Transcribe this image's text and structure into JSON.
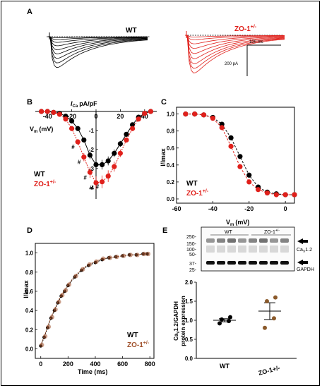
{
  "panels": {
    "A": {
      "label": "A",
      "wt_label": "WT",
      "zo_label": "ZO-1",
      "zo_sup": "+/-",
      "scale_time": "100 ms",
      "scale_current": "200 pA",
      "colors": {
        "wt": "#000000",
        "zo": "#e0201b"
      }
    },
    "B": {
      "label": "B",
      "wt_label": "WT",
      "zo_label": "ZO-1",
      "zo_sup": "+/-"
    },
    "C": {
      "label": "C",
      "wt_label": "WT",
      "zo_label": "ZO-1",
      "zo_sup": "+/-"
    },
    "D": {
      "label": "D",
      "wt_label": "WT",
      "zo_label": "ZO-1",
      "zo_sup": "+/-"
    },
    "E": {
      "label": "E",
      "blot_wt": "WT",
      "blot_zo": "ZO-1",
      "blot_zo_sup": "+/-",
      "cav_label": "Ca",
      "cav_sub": "V",
      "cav_rest": "1.2",
      "gapdh_label": "GAPDH",
      "marker_labels": [
        "250-",
        "150-",
        "100-",
        "50-",
        "37-",
        "25-"
      ]
    }
  },
  "chart_data": [
    {
      "panel": "B",
      "type": "scatter",
      "ylabel": "I",
      "ylabel_sub": "Ca",
      "ylabel_rest": "pA/pF",
      "xlabel": "V",
      "xlabel_sub": "m",
      "xlabel_rest": "(mV)",
      "x_ticks": [
        "-40",
        "-20",
        "0",
        "20",
        "40"
      ],
      "y_ticks": [
        "0",
        "-1",
        "-2",
        "-3",
        "-4"
      ],
      "xlim": [
        -50,
        50
      ],
      "ylim": [
        -4.6,
        0
      ],
      "sig_marker": "#",
      "sig_x": [
        -15,
        -10,
        -5,
        0,
        5
      ],
      "series": [
        {
          "name": "WT",
          "color": "#000000",
          "x": [
            -45,
            -40,
            -35,
            -30,
            -25,
            -20,
            -15,
            -10,
            -5,
            0,
            5,
            10,
            15,
            20,
            25,
            30,
            35,
            40,
            45
          ],
          "y": [
            0,
            0,
            -0.05,
            -0.1,
            -0.25,
            -0.5,
            -0.9,
            -1.5,
            -2.3,
            -2.8,
            -2.8,
            -2.6,
            -2.2,
            -1.7,
            -1.2,
            -0.7,
            -0.3,
            -0.1,
            0
          ]
        },
        {
          "name": "ZO-1+/-",
          "color": "#e0201b",
          "x": [
            -45,
            -40,
            -35,
            -30,
            -25,
            -20,
            -15,
            -10,
            -5,
            0,
            5,
            10,
            15,
            20,
            25,
            30,
            35,
            40,
            45
          ],
          "y": [
            0,
            0,
            -0.05,
            -0.15,
            -0.4,
            -0.9,
            -1.6,
            -2.4,
            -3.2,
            -3.75,
            -3.7,
            -3.4,
            -2.9,
            -2.2,
            -1.5,
            -0.9,
            -0.4,
            -0.1,
            0
          ]
        }
      ]
    },
    {
      "panel": "C",
      "type": "scatter",
      "ylabel": "I/Imax",
      "xlabel": "V",
      "xlabel_sub": "m",
      "xlabel_rest": "(mV)",
      "x_ticks": [
        "-60",
        "-40",
        "-20",
        "0"
      ],
      "y_ticks": [
        "0.0",
        "0.2",
        "0.4",
        "0.6",
        "0.8",
        "1.0"
      ],
      "xlim": [
        -60,
        5
      ],
      "ylim": [
        -0.05,
        1.08
      ],
      "series": [
        {
          "name": "WT",
          "color": "#000000",
          "x": [
            -55,
            -50,
            -45,
            -40,
            -35,
            -30,
            -25,
            -20,
            -15,
            -10,
            -5,
            0,
            5
          ],
          "y": [
            1.0,
            1.0,
            0.99,
            0.96,
            0.88,
            0.72,
            0.5,
            0.28,
            0.14,
            0.08,
            0.06,
            0.05,
            0.05
          ]
        },
        {
          "name": "ZO-1+/-",
          "color": "#e0201b",
          "x": [
            -55,
            -50,
            -45,
            -40,
            -35,
            -30,
            -25,
            -20,
            -15,
            -10,
            -5,
            0,
            5
          ],
          "y": [
            1.0,
            1.0,
            0.99,
            0.95,
            0.84,
            0.62,
            0.38,
            0.2,
            0.11,
            0.07,
            0.05,
            0.05,
            0.05
          ]
        }
      ]
    },
    {
      "panel": "D",
      "type": "scatter",
      "ylabel": "I/Imax",
      "xlabel": "Time (ms)",
      "x_ticks": [
        "0",
        "200",
        "400",
        "600",
        "800"
      ],
      "y_ticks": [
        "0.0",
        "0.2",
        "0.4",
        "0.6",
        "0.8",
        "1.0"
      ],
      "xlim": [
        -40,
        830
      ],
      "ylim": [
        -0.1,
        1.1
      ],
      "series": [
        {
          "name": "WT",
          "color": "#000000",
          "x": [
            0,
            25,
            50,
            75,
            100,
            125,
            150,
            175,
            200,
            250,
            300,
            350,
            400,
            450,
            500,
            550,
            600,
            650,
            700,
            750,
            780
          ],
          "y": [
            0.03,
            0.12,
            0.22,
            0.32,
            0.4,
            0.48,
            0.55,
            0.6,
            0.66,
            0.75,
            0.82,
            0.87,
            0.9,
            0.93,
            0.95,
            0.96,
            0.97,
            0.98,
            0.98,
            0.99,
            0.99
          ]
        },
        {
          "name": "ZO-1+/-",
          "color": "#a0522d",
          "x": [
            0,
            25,
            50,
            75,
            100,
            125,
            150,
            175,
            200,
            250,
            300,
            350,
            400,
            450,
            500,
            550,
            600,
            650,
            700,
            750,
            780
          ],
          "y": [
            0.04,
            0.13,
            0.23,
            0.33,
            0.41,
            0.49,
            0.56,
            0.61,
            0.67,
            0.76,
            0.83,
            0.88,
            0.91,
            0.94,
            0.95,
            0.96,
            0.97,
            0.98,
            0.98,
            0.99,
            0.99
          ]
        }
      ]
    },
    {
      "panel": "E",
      "type": "scatter",
      "ylabel_line1": "Ca",
      "ylabel_line1_sub": "V",
      "ylabel_line1_rest": "1.2/GAPDH",
      "ylabel_line2": "protein expression",
      "categories": [
        "WT",
        "ZO-1+/-"
      ],
      "y_ticks": [
        "0.0",
        "0.5",
        "1.0",
        "1.5",
        "2.0"
      ],
      "ylim": [
        0,
        2.0
      ],
      "series": [
        {
          "name": "WT",
          "color": "#000000",
          "points": [
            0.92,
            0.98,
            1.02,
            1.08
          ],
          "mean": 1.0,
          "sem": 0.04
        },
        {
          "name": "ZO-1+/-",
          "color": "#8b5a2b",
          "points": [
            0.8,
            1.05,
            1.5,
            1.6
          ],
          "mean": 1.24,
          "sem": 0.22
        }
      ]
    }
  ]
}
